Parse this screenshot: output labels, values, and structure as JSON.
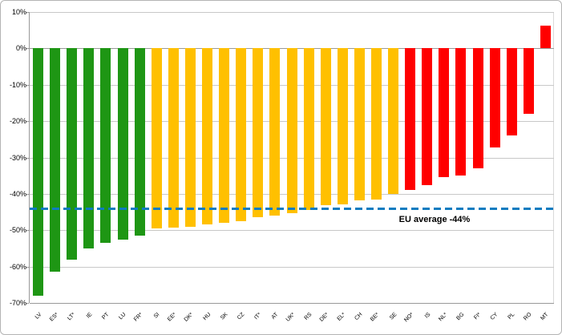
{
  "frame": {
    "background": "#FFFFFF",
    "border_color": "#B4B4B4"
  },
  "chart_data": {
    "type": "bar",
    "title": "",
    "xlabel": "",
    "ylabel": "",
    "categories": [
      "LV",
      "ES*",
      "LT*",
      "IE",
      "PT",
      "LU",
      "FR*",
      "SI",
      "EE*",
      "DK*",
      "HU",
      "SK",
      "CZ",
      "IT*",
      "AT",
      "UK*",
      "RS",
      "DE*",
      "EL*",
      "CH",
      "BE*",
      "SE",
      "NO*",
      "IS",
      "NL*",
      "BG",
      "FI*",
      "CY",
      "PL",
      "RO",
      "MT"
    ],
    "values": [
      -68,
      -61.5,
      -58,
      -55,
      -53.5,
      -52.5,
      -51.5,
      -49.5,
      -49.3,
      -49,
      -48.5,
      -48,
      -47.5,
      -46.5,
      -46,
      -45.3,
      -44.5,
      -43.2,
      -42.8,
      -41.8,
      -41.5,
      -40,
      -39,
      -37.5,
      -35.5,
      -35,
      -33,
      -27.3,
      -24,
      -18,
      6.2
    ],
    "bar_groups": [
      "green",
      "green",
      "green",
      "green",
      "green",
      "green",
      "green",
      "yellow",
      "yellow",
      "yellow",
      "yellow",
      "yellow",
      "yellow",
      "yellow",
      "yellow",
      "yellow",
      "yellow",
      "yellow",
      "yellow",
      "yellow",
      "yellow",
      "yellow",
      "red",
      "red",
      "red",
      "red",
      "red",
      "red",
      "red",
      "red",
      "red"
    ],
    "group_colors": {
      "green": "#1E9614",
      "yellow": "#FFC000",
      "red": "#FF0000"
    },
    "ylim": [
      -70,
      10
    ],
    "ytick_step": 10,
    "ytick_labels": [
      "10%",
      "0%",
      "-10%",
      "-20%",
      "-30%",
      "-40%",
      "-50%",
      "-60%",
      "-70%"
    ],
    "grid": true,
    "gridline_color": "#C8C8C8",
    "axis_color": "#999999",
    "legend": "none",
    "reference_line": {
      "value": -44,
      "label": "EU average -44%",
      "color": "#0E7CC0"
    }
  }
}
